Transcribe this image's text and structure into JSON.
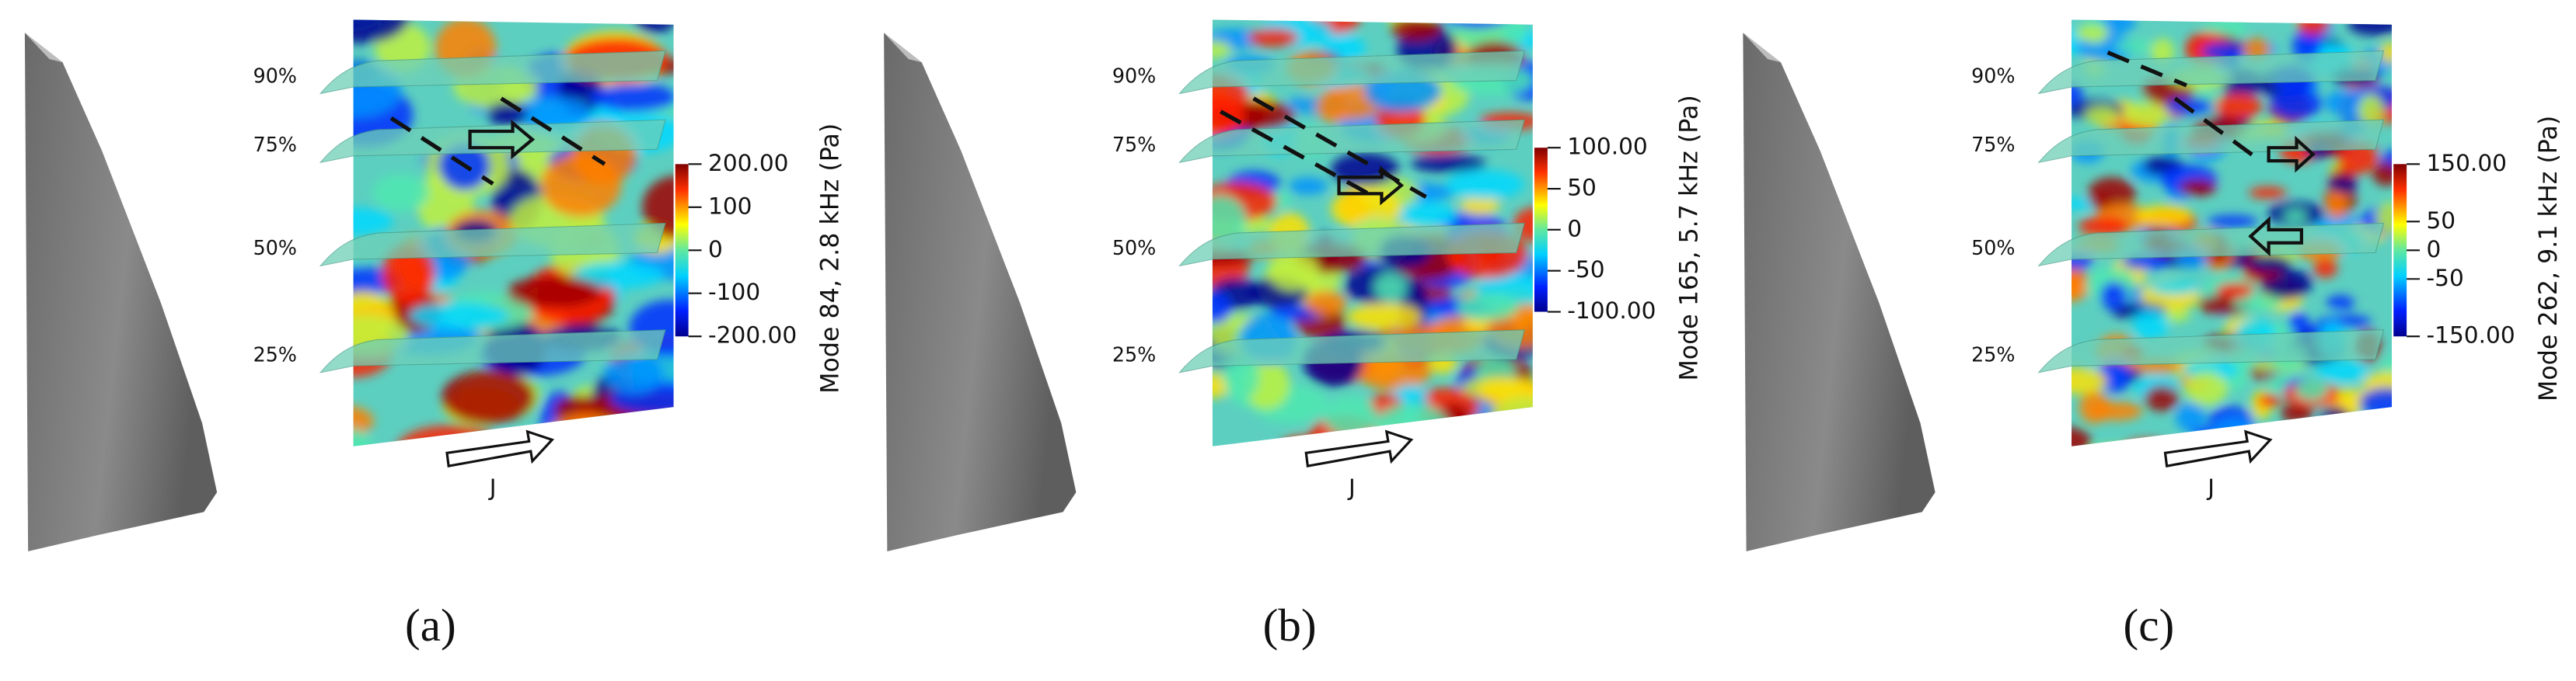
{
  "panels": [
    {
      "label": "(a)",
      "spans": [
        "90%",
        "75%",
        "50%",
        "25%"
      ],
      "flow_label": "J",
      "colorbar": {
        "title": "Mode 84, 2.8 kHz (Pa)",
        "ticks": [
          "200.00",
          "100",
          "0",
          "-100",
          "-200.00"
        ]
      }
    },
    {
      "label": "(b)",
      "spans": [
        "90%",
        "75%",
        "50%",
        "25%"
      ],
      "flow_label": "J",
      "colorbar": {
        "title": "Mode 165, 5.7 kHz (Pa)",
        "ticks": [
          "100.00",
          "50",
          "0",
          "-50",
          "-100.00"
        ]
      }
    },
    {
      "label": "(c)",
      "spans": [
        "90%",
        "75%",
        "50%",
        "25%"
      ],
      "flow_label": "J",
      "colorbar": {
        "title": "Mode 262, 9.1 kHz (Pa)",
        "ticks": [
          "150.00",
          "50",
          "0",
          "-50",
          "-150.00"
        ]
      }
    }
  ]
}
